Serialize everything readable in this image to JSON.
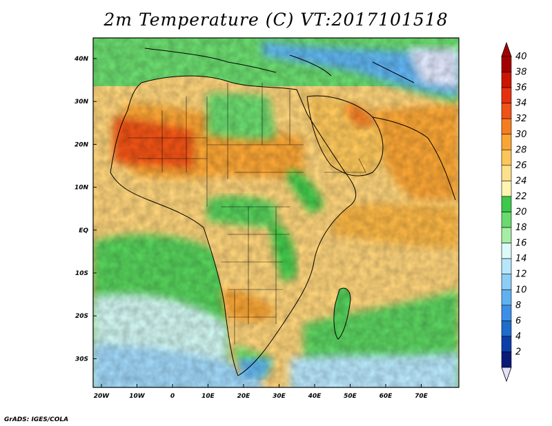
{
  "title": "2m Temperature (C) VT:2017101518",
  "credit": "GrADS: IGES/COLA",
  "map": {
    "lon_labels": [
      "20W",
      "10W",
      "0",
      "10E",
      "20E",
      "30E",
      "40E",
      "50E",
      "60E",
      "70E"
    ],
    "lat_labels": [
      "40N",
      "30N",
      "20N",
      "10N",
      "EQ",
      "10S",
      "20S",
      "30S"
    ]
  },
  "colorbar": {
    "labels": [
      "40",
      "38",
      "36",
      "34",
      "32",
      "30",
      "28",
      "26",
      "24",
      "22",
      "20",
      "18",
      "16",
      "14",
      "12",
      "10",
      "8",
      "6",
      "4",
      "2"
    ],
    "colors": [
      "#a50000",
      "#cc1400",
      "#e83010",
      "#f05218",
      "#f57d20",
      "#f9a535",
      "#fbc65a",
      "#fde08c",
      "#fff4b0",
      "#3cc84a",
      "#6ada6e",
      "#a6eea4",
      "#dcfaf8",
      "#b8e6fb",
      "#8dcdf6",
      "#5fb2ef",
      "#3c8fe6",
      "#1e6ccc",
      "#0b3ea8",
      "#0a1a78"
    ],
    "over_color": "#a50000",
    "under_color": "#e6e0f8"
  }
}
